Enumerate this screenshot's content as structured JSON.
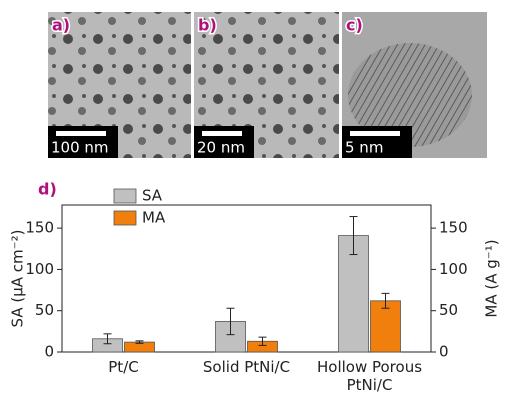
{
  "images": [
    {
      "label": "a)",
      "scale": "100 nm"
    },
    {
      "label": "b)",
      "scale": "20 nm"
    },
    {
      "label": "c)",
      "scale": "5 nm"
    }
  ],
  "chart_data": {
    "type": "bar",
    "panel_label": "d)",
    "categories": [
      "Pt/C",
      "Solid PtNi/C",
      "Hollow Porous PtNi/C"
    ],
    "series": [
      {
        "name": "SA",
        "color": "#c0c0c0",
        "values": [
          16,
          37,
          141
        ],
        "errors": [
          6,
          16,
          23
        ]
      },
      {
        "name": "MA",
        "color": "#f07f0e",
        "values": [
          12,
          13,
          62
        ],
        "errors": [
          1.5,
          5,
          9
        ],
        "axis": "y2"
      }
    ],
    "ylabel": "SA (μA cm⁻²)",
    "y2label": "MA (A g⁻¹)",
    "ylim": [
      0,
      178
    ],
    "yticks": [
      0,
      50,
      100,
      150
    ],
    "y2lim": [
      0,
      178
    ],
    "y2ticks": [
      0,
      50,
      100,
      150
    ],
    "legend": "upper-left"
  }
}
